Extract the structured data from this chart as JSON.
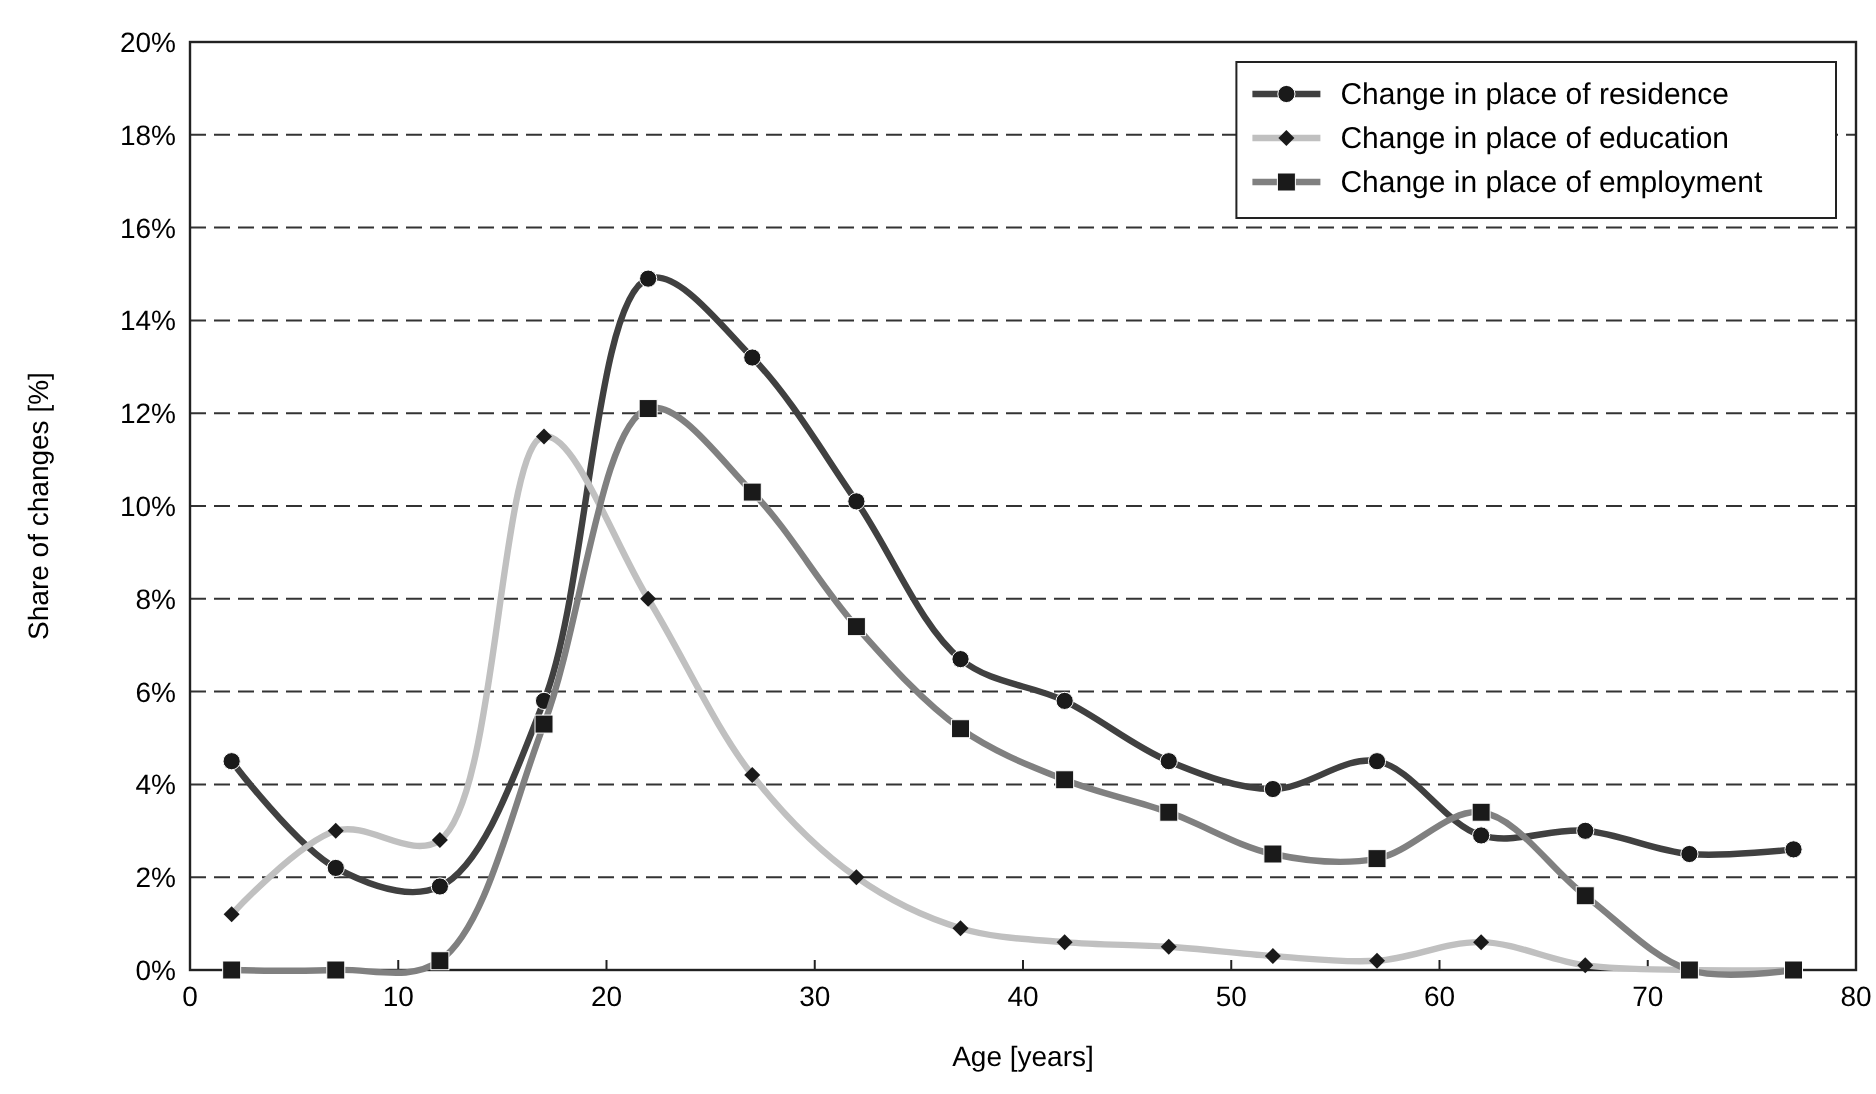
{
  "chart_data": {
    "type": "line",
    "xlabel": "Age [years]",
    "ylabel": "Share of changes [%]",
    "x": [
      2,
      7,
      12,
      17,
      22,
      27,
      32,
      37,
      42,
      47,
      52,
      57,
      62,
      67,
      72,
      77
    ],
    "xlim": [
      0,
      80
    ],
    "xticks": [
      0,
      10,
      20,
      30,
      40,
      50,
      60,
      70,
      80
    ],
    "ylim": [
      0,
      20
    ],
    "yticks": [
      {
        "value": 0,
        "label": "0%"
      },
      {
        "value": 2,
        "label": "2%"
      },
      {
        "value": 4,
        "label": "4%"
      },
      {
        "value": 6,
        "label": "6%"
      },
      {
        "value": 8,
        "label": "8%"
      },
      {
        "value": 10,
        "label": "10%"
      },
      {
        "value": 12,
        "label": "12%"
      },
      {
        "value": 14,
        "label": "14%"
      },
      {
        "value": 16,
        "label": "16%"
      },
      {
        "value": 18,
        "label": "18%"
      },
      {
        "value": 20,
        "label": "20%"
      }
    ],
    "grid": "y",
    "legend": "top right",
    "line_style": "solid",
    "series": [
      {
        "name": "Change in place of residence",
        "color": "#404040",
        "marker": "circle",
        "values": [
          4.5,
          2.2,
          1.8,
          5.8,
          14.9,
          13.2,
          10.1,
          6.7,
          5.8,
          4.5,
          3.9,
          4.5,
          2.9,
          3.0,
          2.5,
          2.6
        ]
      },
      {
        "name": "Change in place of education",
        "color": "#c0c0c0",
        "marker": "diamond",
        "values": [
          1.2,
          3.0,
          2.8,
          11.5,
          8.0,
          4.2,
          2.0,
          0.9,
          0.6,
          0.5,
          0.3,
          0.2,
          0.6,
          0.1,
          0,
          0
        ]
      },
      {
        "name": "Change in place of employment",
        "color": "#808080",
        "marker": "square",
        "values": [
          0,
          0,
          0.2,
          5.3,
          12.1,
          10.3,
          7.4,
          5.2,
          4.1,
          3.4,
          2.5,
          2.4,
          3.4,
          1.6,
          0,
          0
        ]
      }
    ]
  }
}
